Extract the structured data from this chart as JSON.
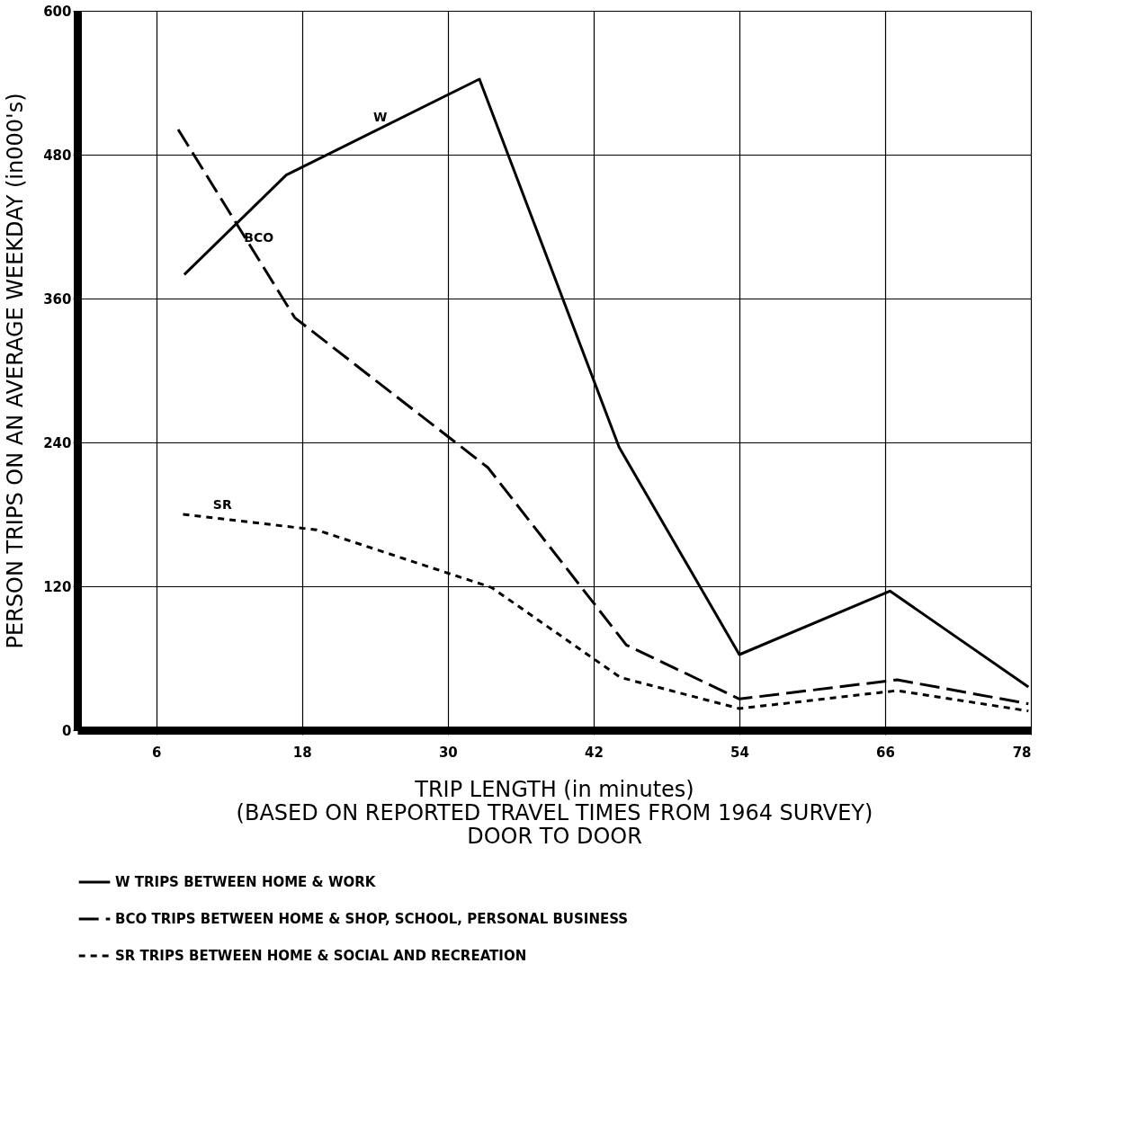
{
  "chart_data": {
    "type": "line",
    "xlabel": "TRIP LENGTH (in minutes)",
    "ylabel": "PERSON TRIPS ON AN AVERAGE WEEKDAY (in000's)",
    "xlim": [
      -0.5,
      78
    ],
    "xticks": [
      6,
      18,
      30,
      42,
      54,
      66,
      78
    ],
    "ylim": [
      0,
      600
    ],
    "yticks": [
      0,
      120,
      240,
      360,
      480,
      600
    ],
    "grid": true,
    "legend": "bottom",
    "series": [
      {
        "name": "W TRIPS BETWEEN HOME & WORK",
        "color": "#000000",
        "line_style": "solid",
        "x": [
          8.3,
          16.7,
          32.6,
          44.1,
          54,
          66.4,
          77.8
        ],
        "values": [
          380,
          463,
          543,
          236,
          63,
          116,
          36
        ]
      },
      {
        "name": "BCO TRIPS BETWEEN HOME & SHOP, SCHOOL, PERSONAL BUSINESS",
        "color": "#000000",
        "line_style": "dashed",
        "x": [
          7.8,
          17.4,
          33.3,
          44.7,
          54,
          67,
          77.8
        ],
        "values": [
          501,
          344,
          219,
          71,
          26,
          42,
          22
        ]
      },
      {
        "name": "SR TRIPS BETWEEN HOME & SOCIAL AND RECREATION",
        "color": "#000000",
        "line_style": "dotted",
        "x": [
          8.2,
          19.2,
          33.6,
          44.2,
          54,
          67,
          77.8
        ],
        "values": [
          180,
          167,
          119,
          44,
          18,
          33,
          16
        ]
      }
    ],
    "annotations": [
      "(BASED ON REPORTED TRAVEL TIMES FROM 1964 SURVEY)",
      "DOOR TO DOOR",
      {
        "text": "W",
        "x": 24,
        "y": 500
      },
      {
        "text": "BCO",
        "x": 14,
        "y": 400
      },
      {
        "text": "SR",
        "x": 11,
        "y": 177
      }
    ]
  }
}
